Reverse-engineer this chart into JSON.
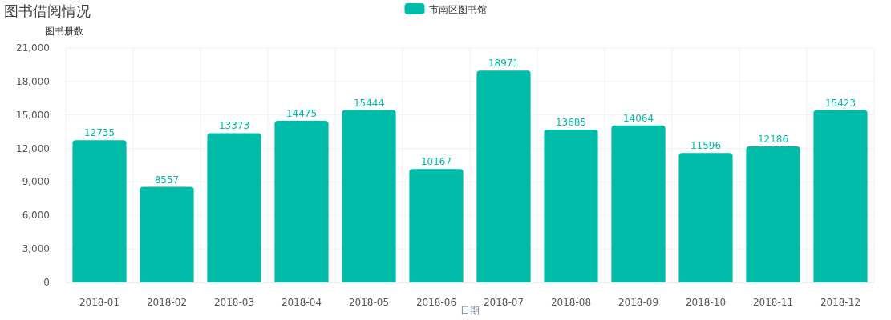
{
  "chart_data": {
    "type": "bar",
    "title": "图书借阅情况",
    "ylabel": "图书册数",
    "xlabel": "日期",
    "categories": [
      "2018-01",
      "2018-02",
      "2018-03",
      "2018-04",
      "2018-05",
      "2018-06",
      "2018-07",
      "2018-08",
      "2018-09",
      "2018-10",
      "2018-11",
      "2018-12"
    ],
    "series": [
      {
        "name": "市南区图书馆",
        "color": "#00bba7",
        "values": [
          12735,
          8557,
          13373,
          14475,
          15444,
          10167,
          18971,
          13685,
          14064,
          11596,
          12186,
          15423
        ]
      }
    ],
    "ylim": [
      0,
      21000
    ],
    "yticks": [
      {
        "value": 0,
        "label": "0"
      },
      {
        "value": 3000,
        "label": "3,000"
      },
      {
        "value": 6000,
        "label": "6,000"
      },
      {
        "value": 9000,
        "label": "9,000"
      },
      {
        "value": 12000,
        "label": "12,000"
      },
      {
        "value": 15000,
        "label": "15,000"
      },
      {
        "value": 18000,
        "label": "18,000"
      },
      {
        "value": 21000,
        "label": "21,000"
      }
    ],
    "grid": true,
    "legend": "top",
    "data_labels": true
  }
}
